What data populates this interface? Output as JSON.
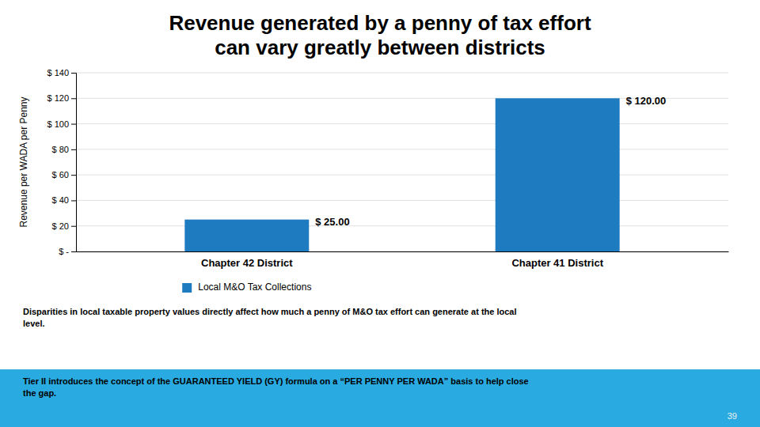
{
  "chart_data": {
    "type": "bar",
    "title": "Revenue generated by a penny of tax effort\ncan vary greatly between districts",
    "categories": [
      "Chapter 42 District",
      "Chapter 41 District"
    ],
    "series": [
      {
        "name": "Local M&O Tax Collections",
        "color": "#1F7BBF",
        "values": [
          25.0,
          120.0
        ],
        "value_labels": [
          "$ 25.00",
          "$ 120.00"
        ]
      }
    ],
    "y_label": "Revenue per WADA per Penny",
    "ylim": [
      0,
      140
    ],
    "yticks": [
      {
        "value": 0,
        "label": "$ -"
      },
      {
        "value": 20,
        "label": "$ 20"
      },
      {
        "value": 40,
        "label": "$ 40"
      },
      {
        "value": 60,
        "label": "$ 60"
      },
      {
        "value": 80,
        "label": "$ 80"
      },
      {
        "value": 100,
        "label": "$ 100"
      },
      {
        "value": 120,
        "label": "$ 120"
      },
      {
        "value": 140,
        "label": "$ 140"
      }
    ],
    "grid": true,
    "legend": "bottom",
    "data_labels": true,
    "annotations": [
      "Disparities in local taxable property values directly affect how much a penny of M&O tax effort can generate at the local\nlevel.",
      "Tier II introduces the concept of the GUARANTEED YIELD (GY) formula on a “PER PENNY PER WADA” basis to help close\nthe gap.",
      "39"
    ]
  }
}
